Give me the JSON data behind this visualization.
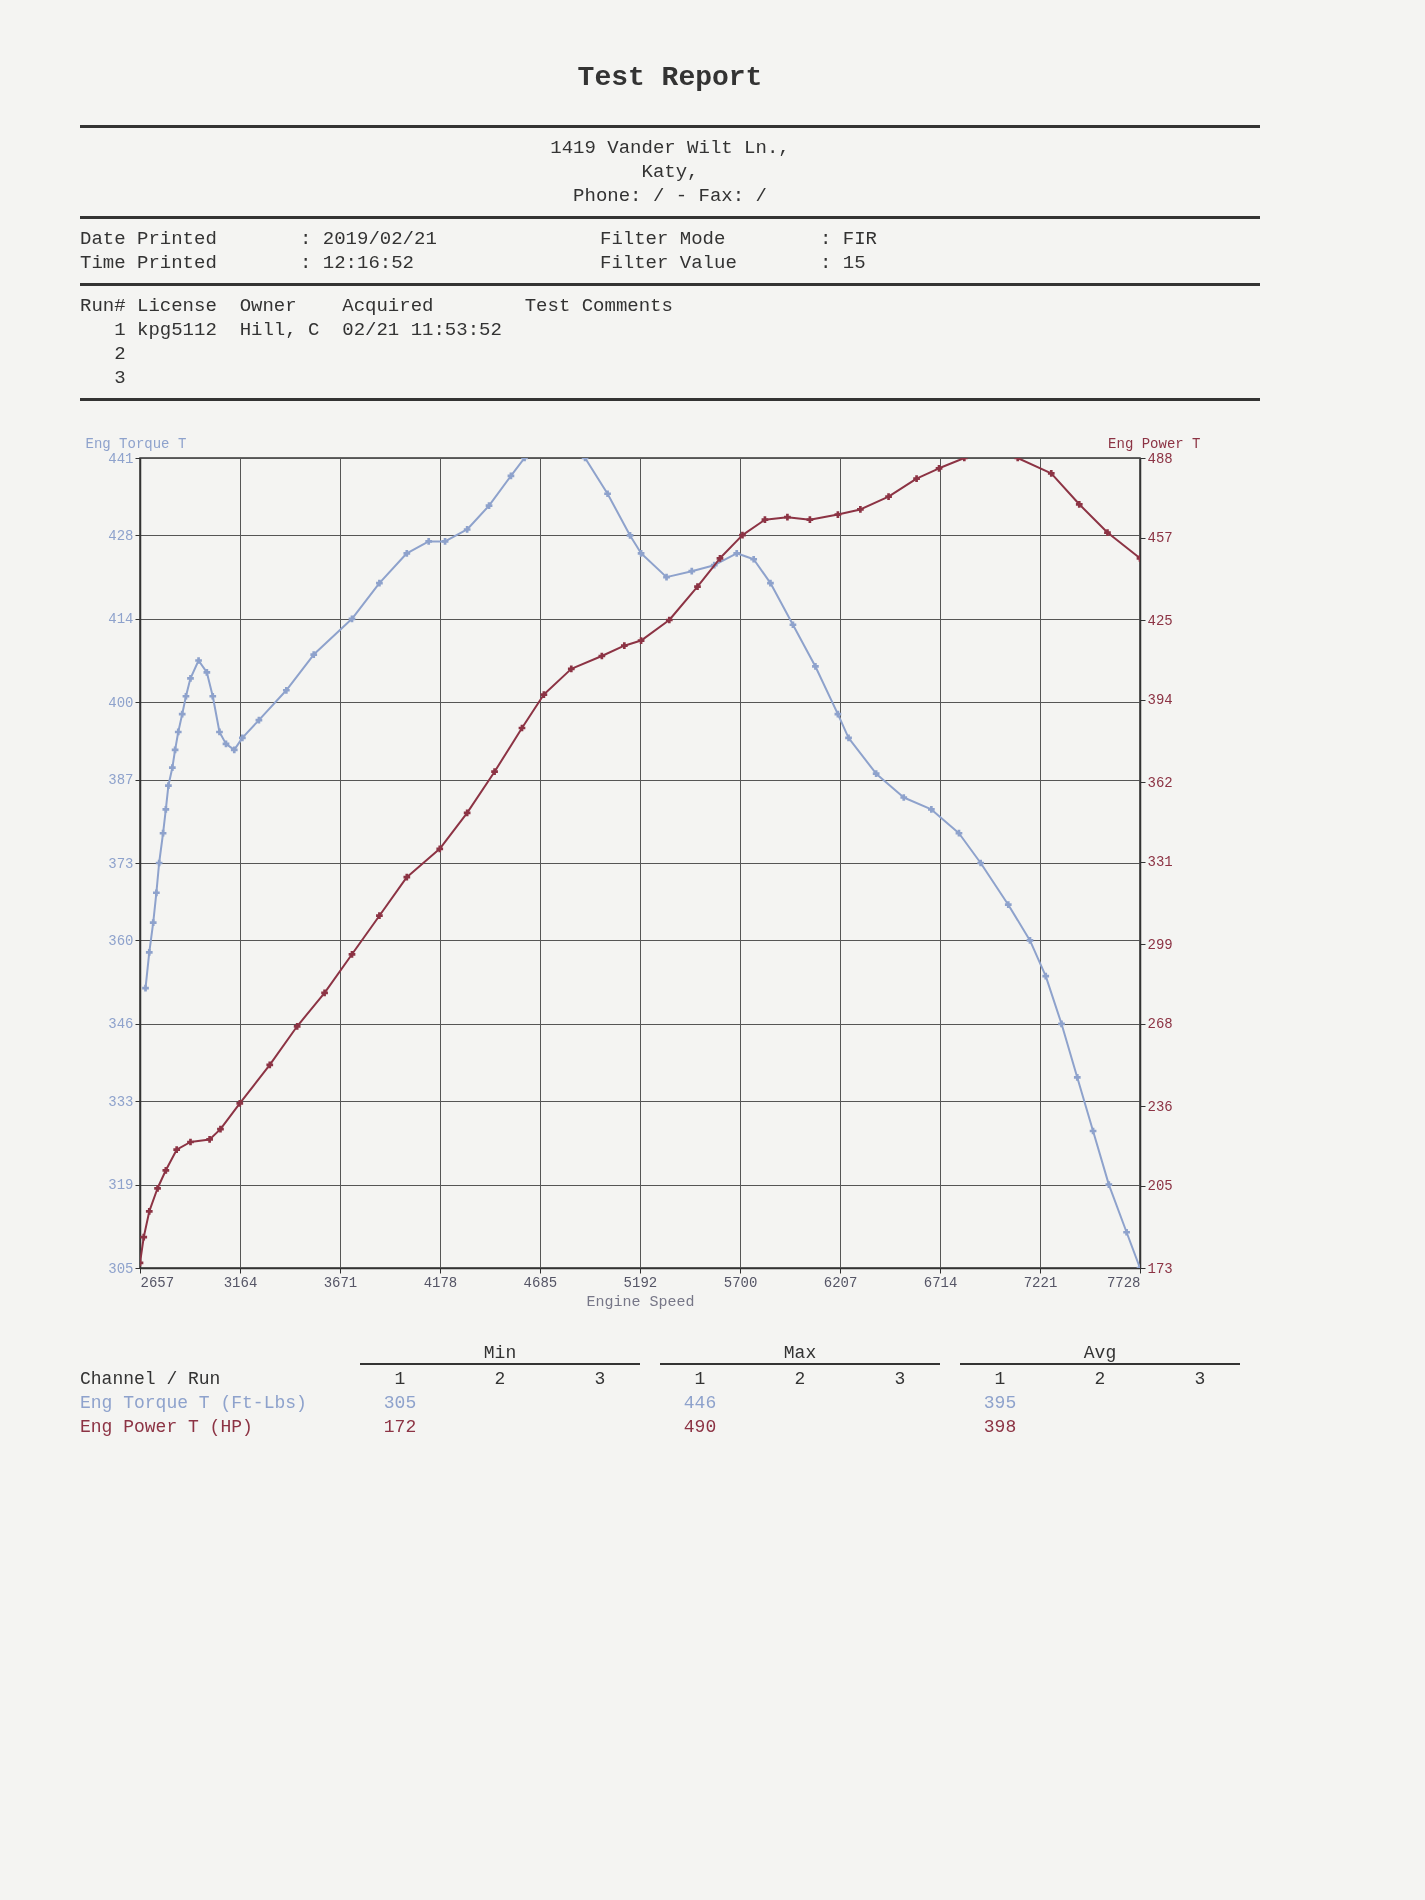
{
  "chart_data": {
    "type": "line",
    "title": "Test Report",
    "xlabel": "Engine Speed",
    "ylabel": "Eng Torque T",
    "y2label": "Eng Power T",
    "annotations": [
      "1419 Vander Wilt Ln.,",
      "Katy,",
      "Phone:  /  - Fax:  /",
      "Date Printed",
      "Time Printed",
      ": 2019/02/21",
      ": 12:16:52",
      "Filter Mode",
      "Filter Value",
      ": FIR",
      ": 15",
      "Run# License  Owner    Acquired        Test Comments",
      "   1 kpg5112  Hill, C  02/21 11:53:52",
      "   2",
      "   3",
      "Min",
      "Max",
      "Avg",
      "Channel / Run",
      "1",
      "2",
      "3",
      "305",
      "446",
      "395",
      "172",
      "490",
      "398"
    ],
    "series": [
      {
        "name": "Eng Torque T (Ft-Lbs)",
        "color": "#8ea2cc",
        "x": [
          2685,
          2704,
          2724,
          2740,
          2754,
          2774,
          2788,
          2801,
          2821,
          2835,
          2851,
          2871,
          2890,
          2913,
          2954,
          2996,
          3026,
          3060,
          3093,
          3135,
          3176,
          3260,
          3399,
          3538,
          3732,
          3871,
          4010,
          4121,
          4204,
          4316,
          4427,
          4538,
          4607,
          4760,
          4914,
          5028,
          5142,
          5198,
          5327,
          5455,
          5569,
          5683,
          5769,
          5854,
          5968,
          6082,
          6196,
          6250,
          6390,
          6530,
          6670,
          6810,
          6920,
          7060,
          7170,
          7250,
          7330,
          7410,
          7490,
          7570,
          7660,
          7728
        ],
        "values": [
          352,
          358,
          363,
          368,
          373,
          378,
          382,
          386,
          389,
          392,
          395,
          398,
          401,
          404,
          407,
          405,
          401,
          395,
          393,
          392,
          394,
          397,
          402,
          408,
          414,
          420,
          425,
          427,
          427,
          429,
          433,
          438,
          441,
          null,
          441,
          435,
          428,
          425,
          421,
          422,
          423,
          425,
          424,
          420,
          413,
          406,
          398,
          394,
          388,
          384,
          382,
          378,
          373,
          366,
          360,
          354,
          346,
          337,
          328,
          319,
          311,
          305
        ]
      },
      {
        "name": "Eng Power T (HP)",
        "color": "#8c3344",
        "axis": "y2",
        "x": [
          2657,
          2676,
          2704,
          2746,
          2788,
          2843,
          2913,
          3010,
          3065,
          3163,
          3315,
          3454,
          3593,
          3732,
          3871,
          4010,
          4177,
          4316,
          4455,
          4594,
          4705,
          4844,
          4999,
          5113,
          5198,
          5341,
          5484,
          5598,
          5712,
          5826,
          5940,
          6054,
          6196,
          6310,
          6453,
          6595,
          6709,
          6837,
          6970,
          7108,
          7278,
          7420,
          7563,
          7728
        ],
        "values": [
          175,
          185,
          195,
          204,
          211,
          219,
          222,
          223,
          227,
          237,
          252,
          267,
          280,
          295,
          310,
          325,
          336,
          350,
          366,
          383,
          396,
          406,
          411,
          415,
          417,
          425,
          438,
          449,
          458,
          464,
          465,
          464,
          466,
          468,
          473,
          480,
          484,
          488,
          null,
          488,
          482,
          470,
          459,
          449
        ]
      }
    ],
    "xlim": [
      2657,
      7728
    ],
    "xticks": [
      2657,
      3164,
      3671,
      4178,
      4685,
      5192,
      5700,
      6207,
      6714,
      7221,
      7728
    ],
    "ylim": [
      305,
      441
    ],
    "yticks": [
      305,
      319,
      333,
      346,
      360,
      373,
      387,
      400,
      414,
      428,
      441
    ],
    "y2lim": [
      173,
      488
    ],
    "y2ticks": [
      173,
      205,
      236,
      268,
      299,
      331,
      362,
      394,
      425,
      457,
      488
    ],
    "grid": true,
    "marker": "cross"
  }
}
